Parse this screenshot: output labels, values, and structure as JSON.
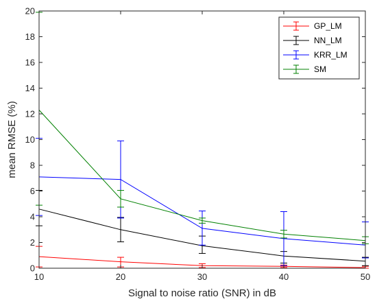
{
  "chart_data": {
    "type": "line",
    "xlabel": "Signal to noise ratio (SNR) in dB",
    "ylabel": "mean RMSE (%)",
    "x": [
      10,
      20,
      30,
      40,
      50
    ],
    "xlim": [
      10,
      50
    ],
    "ylim": [
      0,
      20
    ],
    "xticks": [
      "10",
      "20",
      "30",
      "40",
      "50"
    ],
    "yticks": [
      "0",
      "2",
      "4",
      "6",
      "8",
      "10",
      "12",
      "14",
      "16",
      "18",
      "20"
    ],
    "grid": false,
    "legend_position": "top-right",
    "series": [
      {
        "name": "GP_LM",
        "color": "#ff0000",
        "values": [
          0.9,
          0.5,
          0.2,
          0.15,
          0.05
        ],
        "err_low": [
          0.8,
          0.4,
          0.15,
          0.1,
          0.05
        ],
        "err_high": [
          0.8,
          0.35,
          0.15,
          0.1,
          0.1
        ]
      },
      {
        "name": "NN_LM",
        "color": "#000000",
        "values": [
          4.6,
          3.0,
          1.75,
          0.95,
          0.55
        ],
        "err_low": [
          1.3,
          0.95,
          0.6,
          0.55,
          0.35
        ],
        "err_high": [
          1.45,
          0.95,
          0.75,
          0.35,
          0.3
        ]
      },
      {
        "name": "KRR_LM",
        "color": "#0000ff",
        "values": [
          7.1,
          6.9,
          3.1,
          2.3,
          1.8
        ],
        "err_low": [
          3.0,
          3.0,
          1.3,
          2.1,
          1.0
        ],
        "err_high": [
          3.0,
          3.0,
          1.35,
          2.1,
          1.8
        ]
      },
      {
        "name": "SM",
        "color": "#008000",
        "values": [
          12.3,
          5.4,
          3.7,
          2.65,
          2.15
        ],
        "err_low": [
          7.4,
          0.65,
          0.2,
          0.3,
          0.25
        ],
        "err_high": [
          7.6,
          0.65,
          0.2,
          0.3,
          0.3
        ]
      }
    ]
  }
}
